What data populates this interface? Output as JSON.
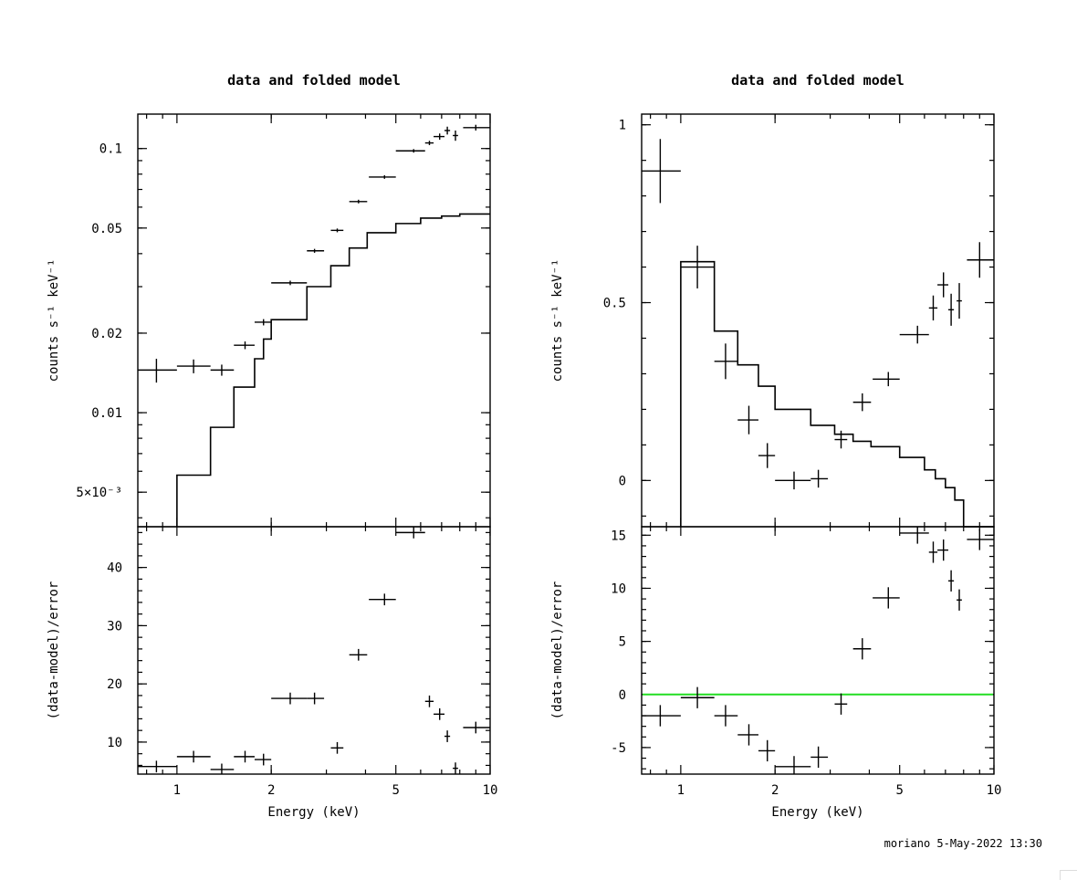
{
  "footer": {
    "text": "moriano  5-May-2022 13:30"
  },
  "chart_data": [
    {
      "type": "line",
      "title": "data and folded model",
      "xlabel": "Energy (keV)",
      "xscale": "log",
      "xlim": [
        0.75,
        10
      ],
      "xticks": [
        1,
        2,
        5,
        10
      ],
      "top": {
        "ylabel": "counts s⁻¹ keV⁻¹",
        "yscale": "log",
        "ylim": [
          0.0037,
          0.135
        ],
        "yticks": [
          {
            "v": 0.1,
            "label": "0.1"
          },
          {
            "v": 0.05,
            "label": "0.05"
          },
          {
            "v": 0.02,
            "label": "0.02"
          },
          {
            "v": 0.01,
            "label": "0.01"
          },
          {
            "v": 0.005,
            "label": "5×10⁻³"
          }
        ],
        "data": [
          {
            "x": 0.86,
            "xl": 0.75,
            "xh": 1.0,
            "y": 0.0145,
            "ye": 0.0015
          },
          {
            "x": 1.13,
            "xl": 1.0,
            "xh": 1.28,
            "y": 0.015,
            "ye": 0.0009
          },
          {
            "x": 1.39,
            "xl": 1.28,
            "xh": 1.52,
            "y": 0.0145,
            "ye": 0.0007
          },
          {
            "x": 1.65,
            "xl": 1.52,
            "xh": 1.77,
            "y": 0.018,
            "ye": 0.0006
          },
          {
            "x": 1.89,
            "xl": 1.77,
            "xh": 2.0,
            "y": 0.022,
            "ye": 0.0006
          },
          {
            "x": 2.3,
            "xl": 2.0,
            "xh": 2.6,
            "y": 0.031,
            "ye": 0.0006
          },
          {
            "x": 2.75,
            "xl": 2.6,
            "xh": 2.95,
            "y": 0.041,
            "ye": 0.0007
          },
          {
            "x": 3.25,
            "xl": 3.1,
            "xh": 3.4,
            "y": 0.049,
            "ye": 0.0008
          },
          {
            "x": 3.8,
            "xl": 3.55,
            "xh": 4.05,
            "y": 0.063,
            "ye": 0.001
          },
          {
            "x": 4.6,
            "xl": 4.1,
            "xh": 5.0,
            "y": 0.078,
            "ye": 0.0012
          },
          {
            "x": 5.7,
            "xl": 5.0,
            "xh": 6.2,
            "y": 0.098,
            "ye": 0.0015
          },
          {
            "x": 6.4,
            "xl": 6.2,
            "xh": 6.6,
            "y": 0.105,
            "ye": 0.002
          },
          {
            "x": 6.9,
            "xl": 6.6,
            "xh": 7.15,
            "y": 0.111,
            "ye": 0.003
          },
          {
            "x": 7.3,
            "xl": 7.15,
            "xh": 7.45,
            "y": 0.117,
            "ye": 0.004
          },
          {
            "x": 7.75,
            "xl": 7.6,
            "xh": 7.9,
            "y": 0.112,
            "ye": 0.005
          },
          {
            "x": 9.0,
            "xl": 8.2,
            "xh": 10.0,
            "y": 0.12,
            "ye": 0.003
          }
        ],
        "model": {
          "edges": [
            1.0,
            1.28,
            1.52,
            1.77,
            1.89,
            2.0,
            2.6,
            3.1,
            3.55,
            4.05,
            5.0,
            6.0,
            7.0,
            8.0,
            10.0
          ],
          "values": [
            0.0058,
            0.0088,
            0.0125,
            0.016,
            0.019,
            0.0225,
            0.03,
            0.036,
            0.042,
            0.048,
            0.052,
            0.0545,
            0.0555,
            0.0565
          ]
        }
      },
      "bottom": {
        "ylabel": "(data-model)/error",
        "ylim": [
          4.5,
          47
        ],
        "yticks": [
          10,
          20,
          30,
          40
        ],
        "zero_line": false,
        "data": [
          {
            "x": 0.86,
            "xl": 0.75,
            "xh": 1.0,
            "y": 5.8,
            "ye": 1
          },
          {
            "x": 1.13,
            "xl": 1.0,
            "xh": 1.28,
            "y": 7.5,
            "ye": 1
          },
          {
            "x": 1.39,
            "xl": 1.28,
            "xh": 1.52,
            "y": 5.3,
            "ye": 1
          },
          {
            "x": 1.65,
            "xl": 1.52,
            "xh": 1.77,
            "y": 7.5,
            "ye": 1
          },
          {
            "x": 1.89,
            "xl": 1.77,
            "xh": 2.0,
            "y": 7.0,
            "ye": 1
          },
          {
            "x": 2.3,
            "xl": 2.0,
            "xh": 2.6,
            "y": 17.5,
            "ye": 1
          },
          {
            "x": 2.75,
            "xl": 2.6,
            "xh": 2.95,
            "y": 17.5,
            "ye": 1
          },
          {
            "x": 3.25,
            "xl": 3.1,
            "xh": 3.4,
            "y": 9.0,
            "ye": 1
          },
          {
            "x": 3.8,
            "xl": 3.55,
            "xh": 4.05,
            "y": 25.0,
            "ye": 1
          },
          {
            "x": 4.6,
            "xl": 4.1,
            "xh": 5.0,
            "y": 34.5,
            "ye": 1
          },
          {
            "x": 5.7,
            "xl": 5.0,
            "xh": 6.2,
            "y": 46.0,
            "ye": 1
          },
          {
            "x": 6.4,
            "xl": 6.2,
            "xh": 6.6,
            "y": 17.0,
            "ye": 1
          },
          {
            "x": 6.9,
            "xl": 6.6,
            "xh": 7.15,
            "y": 14.8,
            "ye": 1
          },
          {
            "x": 7.3,
            "xl": 7.15,
            "xh": 7.45,
            "y": 11.0,
            "ye": 1
          },
          {
            "x": 7.75,
            "xl": 7.6,
            "xh": 7.9,
            "y": 5.5,
            "ye": 1
          },
          {
            "x": 9.0,
            "xl": 8.2,
            "xh": 10.0,
            "y": 12.5,
            "ye": 1
          }
        ]
      }
    },
    {
      "type": "line",
      "title": "data and folded model",
      "xlabel": "Energy (keV)",
      "xscale": "log",
      "xlim": [
        0.75,
        10
      ],
      "xticks": [
        1,
        2,
        5,
        10
      ],
      "top": {
        "ylabel": "counts s⁻¹ keV⁻¹",
        "yscale": "linear",
        "ylim": [
          -0.13,
          1.03
        ],
        "yticks": [
          {
            "v": 1,
            "label": "1"
          },
          {
            "v": 0.5,
            "label": "0.5"
          },
          {
            "v": 0,
            "label": "0"
          }
        ],
        "data": [
          {
            "x": 0.86,
            "xl": 0.75,
            "xh": 1.0,
            "y": 0.87,
            "ye": 0.09
          },
          {
            "x": 1.13,
            "xl": 1.0,
            "xh": 1.28,
            "y": 0.6,
            "ye": 0.06
          },
          {
            "x": 1.39,
            "xl": 1.28,
            "xh": 1.52,
            "y": 0.335,
            "ye": 0.05
          },
          {
            "x": 1.65,
            "xl": 1.52,
            "xh": 1.77,
            "y": 0.17,
            "ye": 0.04
          },
          {
            "x": 1.89,
            "xl": 1.77,
            "xh": 2.0,
            "y": 0.07,
            "ye": 0.035
          },
          {
            "x": 2.3,
            "xl": 2.0,
            "xh": 2.6,
            "y": 0.0,
            "ye": 0.025
          },
          {
            "x": 2.75,
            "xl": 2.6,
            "xh": 2.95,
            "y": 0.005,
            "ye": 0.025
          },
          {
            "x": 3.25,
            "xl": 3.1,
            "xh": 3.4,
            "y": 0.115,
            "ye": 0.025
          },
          {
            "x": 3.8,
            "xl": 3.55,
            "xh": 4.05,
            "y": 0.22,
            "ye": 0.025
          },
          {
            "x": 4.6,
            "xl": 4.1,
            "xh": 5.0,
            "y": 0.285,
            "ye": 0.02
          },
          {
            "x": 5.7,
            "xl": 5.0,
            "xh": 6.2,
            "y": 0.41,
            "ye": 0.025
          },
          {
            "x": 6.4,
            "xl": 6.2,
            "xh": 6.6,
            "y": 0.485,
            "ye": 0.035
          },
          {
            "x": 6.9,
            "xl": 6.6,
            "xh": 7.15,
            "y": 0.55,
            "ye": 0.035
          },
          {
            "x": 7.3,
            "xl": 7.15,
            "xh": 7.45,
            "y": 0.48,
            "ye": 0.045
          },
          {
            "x": 7.75,
            "xl": 7.6,
            "xh": 7.9,
            "y": 0.505,
            "ye": 0.05
          },
          {
            "x": 9.0,
            "xl": 8.2,
            "xh": 10.0,
            "y": 0.62,
            "ye": 0.05
          }
        ],
        "model": {
          "edges": [
            1.0,
            1.28,
            1.52,
            1.77,
            2.0,
            2.6,
            3.1,
            3.55,
            4.05,
            5.0,
            6.0,
            6.5,
            7.0,
            7.5,
            8.0,
            10.0
          ],
          "values": [
            0.615,
            0.42,
            0.325,
            0.265,
            0.2,
            0.155,
            0.13,
            0.11,
            0.095,
            0.065,
            0.03,
            0.005,
            -0.02,
            -0.055,
            -0.2
          ]
        }
      },
      "bottom": {
        "ylabel": "(data-model)/error",
        "ylim": [
          -7.5,
          15.8
        ],
        "yticks": [
          15,
          10,
          5,
          0,
          -5
        ],
        "zero_line": true,
        "zero_line_color": "#22dd22",
        "data": [
          {
            "x": 0.86,
            "xl": 0.75,
            "xh": 1.0,
            "y": -2.0,
            "ye": 1
          },
          {
            "x": 1.13,
            "xl": 1.0,
            "xh": 1.28,
            "y": -0.3,
            "ye": 1
          },
          {
            "x": 1.39,
            "xl": 1.28,
            "xh": 1.52,
            "y": -2.0,
            "ye": 1
          },
          {
            "x": 1.65,
            "xl": 1.52,
            "xh": 1.77,
            "y": -3.8,
            "ye": 1
          },
          {
            "x": 1.89,
            "xl": 1.77,
            "xh": 2.0,
            "y": -5.3,
            "ye": 1
          },
          {
            "x": 2.3,
            "xl": 2.0,
            "xh": 2.6,
            "y": -6.8,
            "ye": 1
          },
          {
            "x": 2.75,
            "xl": 2.6,
            "xh": 2.95,
            "y": -5.9,
            "ye": 1
          },
          {
            "x": 3.25,
            "xl": 3.1,
            "xh": 3.4,
            "y": -0.9,
            "ye": 1
          },
          {
            "x": 3.8,
            "xl": 3.55,
            "xh": 4.05,
            "y": 4.3,
            "ye": 1
          },
          {
            "x": 4.6,
            "xl": 4.1,
            "xh": 5.0,
            "y": 9.1,
            "ye": 1
          },
          {
            "x": 5.7,
            "xl": 5.0,
            "xh": 6.2,
            "y": 15.2,
            "ye": 1
          },
          {
            "x": 6.4,
            "xl": 6.2,
            "xh": 6.6,
            "y": 13.4,
            "ye": 1
          },
          {
            "x": 6.9,
            "xl": 6.6,
            "xh": 7.15,
            "y": 13.6,
            "ye": 1
          },
          {
            "x": 7.3,
            "xl": 7.15,
            "xh": 7.45,
            "y": 10.7,
            "ye": 1
          },
          {
            "x": 7.75,
            "xl": 7.6,
            "xh": 7.9,
            "y": 8.9,
            "ye": 1
          },
          {
            "x": 9.0,
            "xl": 8.2,
            "xh": 10.0,
            "y": 14.6,
            "ye": 1
          }
        ]
      }
    }
  ]
}
